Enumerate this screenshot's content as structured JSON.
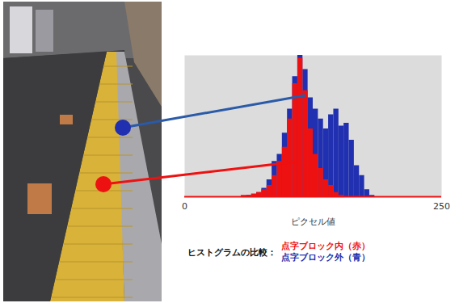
{
  "chart_data": {
    "type": "histogram",
    "xlabel": "ピクセル値",
    "bins": [
      50,
      55,
      60,
      65,
      70,
      75,
      80,
      85,
      90,
      95,
      100,
      105,
      110,
      115,
      120,
      125,
      130,
      135,
      140,
      145,
      150,
      155,
      160,
      165,
      170,
      175,
      180,
      185
    ],
    "series": [
      {
        "name": "点字ブロック内（赤）",
        "color": "#ee1111",
        "values": [
          0,
          1,
          1,
          2,
          3,
          5,
          8,
          15,
          25,
          35,
          55,
          80,
          98,
          75,
          48,
          30,
          20,
          12,
          8,
          3,
          1,
          0,
          0,
          0,
          0,
          0,
          0
        ]
      },
      {
        "name": "点字ブロック外（青）",
        "color": "#2030b0",
        "values": [
          0,
          0,
          1,
          1,
          3,
          6,
          12,
          25,
          30,
          45,
          62,
          85,
          100,
          90,
          70,
          62,
          55,
          48,
          58,
          62,
          50,
          52,
          40,
          22,
          15,
          5,
          1
        ]
      }
    ],
    "xlim": [
      0,
      250
    ],
    "xticks": [
      0,
      250
    ],
    "ylim": [
      0,
      100
    ],
    "tick_labels": "x",
    "legend": "bottom",
    "legend_title": "ヒストグラムの比較："
  }
}
